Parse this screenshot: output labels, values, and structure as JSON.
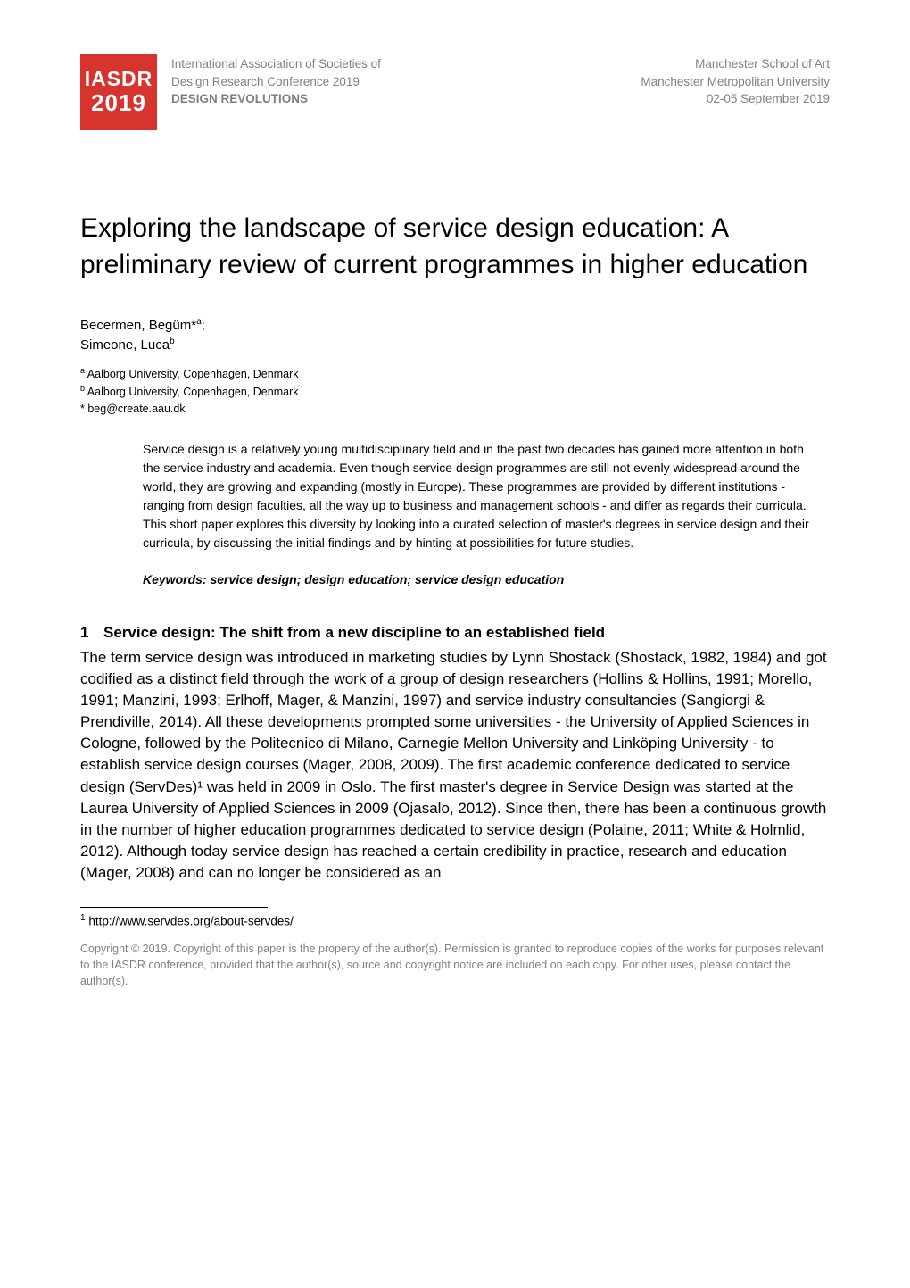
{
  "logo": {
    "line1": "IASDR",
    "line2": "2019",
    "bg_color": "#d8342e",
    "text_color": "#ffffff"
  },
  "conf": {
    "line1": "International Association of Societies of",
    "line2": "Design Research Conference 2019",
    "line3": "DESIGN REVOLUTIONS"
  },
  "venue": {
    "line1": "Manchester School of Art",
    "line2": "Manchester Metropolitan University",
    "line3": "02-05 September 2019"
  },
  "title": "Exploring the landscape of service design education: A preliminary review of current programmes in higher education",
  "authors": {
    "a1_name": "Becermen, Begüm*",
    "a1_sup": "a",
    "a2_name": "Simeone, Luca",
    "a2_sup": "b"
  },
  "affiliations": {
    "a_sup": "a",
    "a_text": " Aalborg University, Copenhagen, Denmark",
    "b_sup": "b",
    "b_text": " Aalborg University, Copenhagen, Denmark"
  },
  "corr_email": "* beg@create.aau.dk",
  "abstract": "Service design is a relatively young multidisciplinary field and in the past two decades has gained more attention in both the service industry and academia. Even though service design programmes are still not evenly widespread around the world, they are growing and expanding (mostly in Europe). These programmes are provided by different institutions - ranging from design faculties, all the way up to business and management schools - and differ as regards their curricula. This short paper explores this diversity by looking into a curated selection of master's degrees in service design and their curricula, by discussing the initial findings and by hinting at possibilities for future studies.",
  "keywords": "Keywords: service design; design education; service design education",
  "section": {
    "number": "1",
    "heading": "Service design: The shift from a new discipline to an established field",
    "body": "The term service design was introduced in marketing studies by Lynn Shostack (Shostack, 1982, 1984) and got codified as a distinct field through the work of a group of design researchers (Hollins & Hollins, 1991; Morello, 1991; Manzini, 1993; Erlhoff, Mager, & Manzini, 1997) and service industry consultancies (Sangiorgi & Prendiville, 2014). All these developments prompted some universities - the University of Applied Sciences in Cologne, followed by the Politecnico di Milano, Carnegie Mellon University and Linköping University - to establish service design courses (Mager, 2008, 2009). The first academic conference dedicated to service design (ServDes)¹ was held in 2009 in Oslo. The first master's degree in Service Design was started at the Laurea University of Applied Sciences in 2009 (Ojasalo, 2012). Since then, there has been a continuous growth in the number of higher education programmes dedicated to service design (Polaine, 2011; White & Holmlid, 2012). Although today service design has reached a certain credibility in practice, research and education (Mager, 2008) and can no longer be considered as an"
  },
  "footnote": {
    "marker": "1",
    "text": " http://www.servdes.org/about-servdes/"
  },
  "copyright": "Copyright © 2019. Copyright of this paper is the property of the author(s). Permission is granted to reproduce copies of the works for purposes relevant to the IASDR conference, provided that the author(s), source and copyright notice are included on each copy. For other uses, please contact the author(s).",
  "colors": {
    "text_primary": "#000000",
    "text_muted": "#808080",
    "background": "#ffffff"
  },
  "typography": {
    "title_fontsize": 30,
    "body_fontsize": 17,
    "abstract_fontsize": 14,
    "header_fontsize": 13.5,
    "affil_fontsize": 12.5,
    "copyright_fontsize": 12.5
  }
}
